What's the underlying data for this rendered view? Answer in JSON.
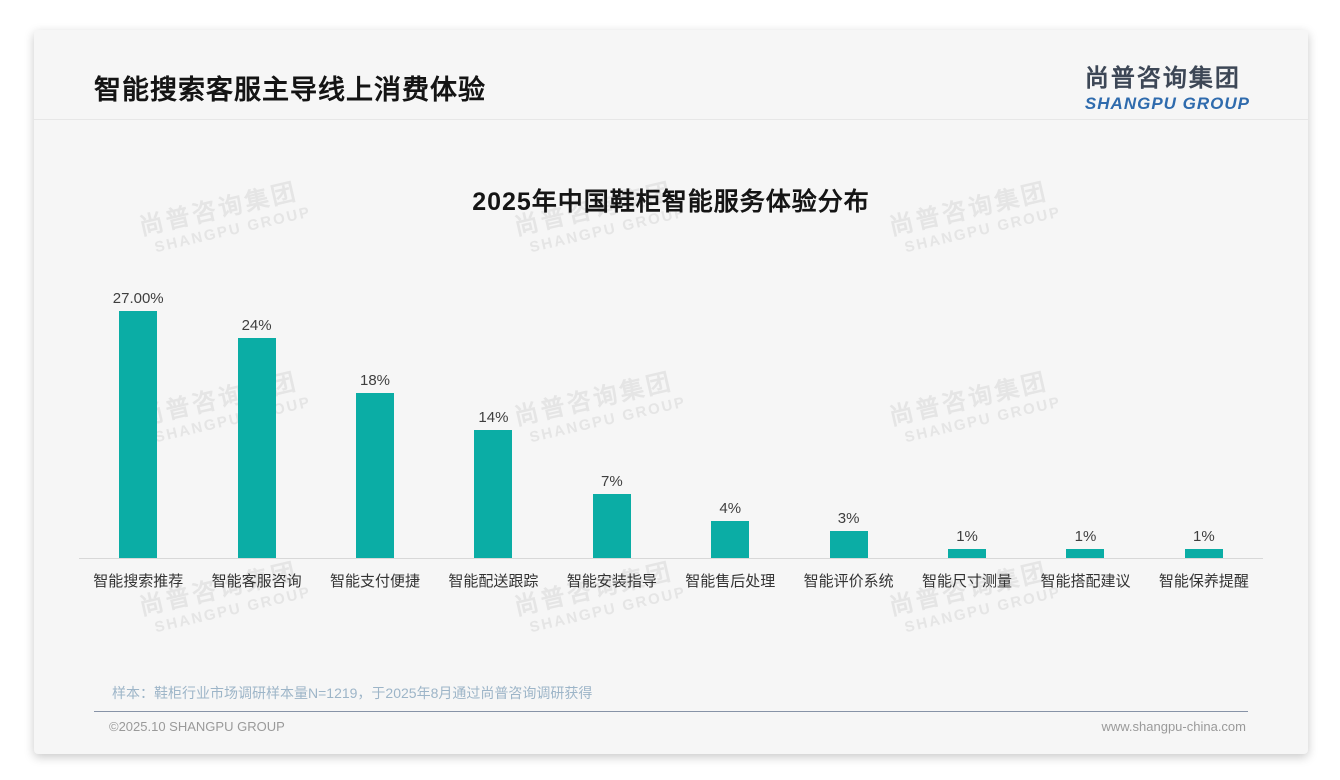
{
  "page": {
    "title": "智能搜索客服主导线上消费体验",
    "logo": {
      "cn": "尚普咨询集团",
      "en": "SHANGPU GROUP"
    },
    "watermark": {
      "cn": "尚普咨询集团",
      "en": "SHANGPU GROUP"
    },
    "footer": {
      "sample_note": "样本：鞋柜行业市场调研样本量N=1219，于2025年8月通过尚普咨询调研获得",
      "copyright": "©2025.10 SHANGPU GROUP",
      "website": "www.shangpu-china.com"
    }
  },
  "colors": {
    "bar": "#0bada5",
    "logo_cn": "#3d4756",
    "logo_en": "#2f6bad",
    "axis_line": "#d8d8d8",
    "note_text": "#9db5c8",
    "footer_divider": "#8793a7"
  },
  "chart_data": {
    "type": "bar",
    "title": "2025年中国鞋柜智能服务体验分布",
    "categories": [
      "智能搜索推荐",
      "智能客服咨询",
      "智能支付便捷",
      "智能配送跟踪",
      "智能安装指导",
      "智能售后处理",
      "智能评价系统",
      "智能尺寸测量",
      "智能搭配建议",
      "智能保养提醒"
    ],
    "values": [
      27,
      24,
      18,
      14,
      7,
      4,
      3,
      1,
      1,
      1
    ],
    "value_labels": [
      "27.00%",
      "24%",
      "18%",
      "14%",
      "7%",
      "4%",
      "3%",
      "1%",
      "1%",
      "1%"
    ],
    "unit": "%",
    "ylim": [
      0,
      30
    ],
    "bar_color": "#0bada5",
    "grid": false,
    "legend": false,
    "xlabel": "",
    "ylabel": ""
  }
}
